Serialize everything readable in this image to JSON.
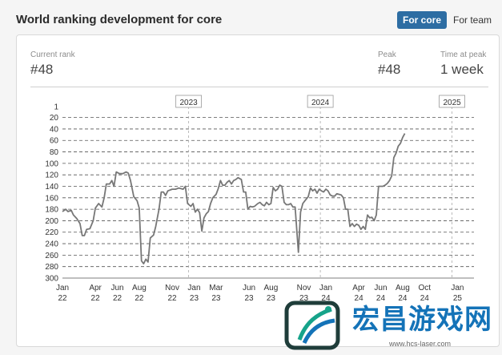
{
  "header": {
    "title": "World ranking development for core",
    "toggle_core": "For core",
    "toggle_team": "For team"
  },
  "stats": {
    "current_rank_label": "Current rank",
    "current_rank_value": "#48",
    "peak_label": "Peak",
    "peak_value": "#48",
    "time_at_peak_label": "Time at peak",
    "time_at_peak_value": "1 week"
  },
  "watermark": {
    "text": "宏昌游戏网",
    "url": "www.hcs-laser.com"
  },
  "chart_data": {
    "type": "line",
    "y_inverted": true,
    "ylim": [
      1,
      300
    ],
    "y_ticks": [
      1,
      20,
      40,
      60,
      80,
      100,
      120,
      140,
      160,
      180,
      200,
      220,
      240,
      260,
      280,
      300
    ],
    "x_ticks": [
      {
        "month": "Jan",
        "year": "22",
        "t": 0
      },
      {
        "month": "Apr",
        "year": "22",
        "t": 3
      },
      {
        "month": "Jun",
        "year": "22",
        "t": 5
      },
      {
        "month": "Aug",
        "year": "22",
        "t": 7
      },
      {
        "month": "Nov",
        "year": "22",
        "t": 10
      },
      {
        "month": "Jan",
        "year": "23",
        "t": 12
      },
      {
        "month": "Mar",
        "year": "23",
        "t": 14
      },
      {
        "month": "Jun",
        "year": "23",
        "t": 17
      },
      {
        "month": "Aug",
        "year": "23",
        "t": 19
      },
      {
        "month": "Nov",
        "year": "23",
        "t": 22
      },
      {
        "month": "Jan",
        "year": "24",
        "t": 24
      },
      {
        "month": "Apr",
        "year": "24",
        "t": 27
      },
      {
        "month": "Jun",
        "year": "24",
        "t": 29
      },
      {
        "month": "Aug",
        "year": "24",
        "t": 31
      },
      {
        "month": "Oct",
        "year": "24",
        "t": 33
      },
      {
        "month": "Jan",
        "year": "25",
        "t": 36
      }
    ],
    "year_markers": [
      {
        "label": "2023",
        "t": 11.5
      },
      {
        "label": "2024",
        "t": 23.5
      },
      {
        "label": "2025",
        "t": 35.5
      }
    ],
    "x_range": [
      0,
      37.5
    ],
    "series": [
      {
        "color": "#777777",
        "points": [
          [
            0.0,
            184
          ],
          [
            0.3,
            180
          ],
          [
            0.5,
            184
          ],
          [
            0.8,
            182
          ],
          [
            1.0,
            190
          ],
          [
            1.3,
            196
          ],
          [
            1.6,
            205
          ],
          [
            1.8,
            226
          ],
          [
            2.0,
            226
          ],
          [
            2.2,
            215
          ],
          [
            2.5,
            214
          ],
          [
            2.8,
            200
          ],
          [
            3.0,
            178
          ],
          [
            3.3,
            170
          ],
          [
            3.6,
            176
          ],
          [
            3.8,
            160
          ],
          [
            4.0,
            136
          ],
          [
            4.3,
            136
          ],
          [
            4.5,
            130
          ],
          [
            4.7,
            140
          ],
          [
            4.9,
            115
          ],
          [
            5.2,
            118
          ],
          [
            5.5,
            118
          ],
          [
            5.8,
            115
          ],
          [
            6.0,
            117
          ],
          [
            6.2,
            130
          ],
          [
            6.5,
            158
          ],
          [
            6.8,
            165
          ],
          [
            7.0,
            178
          ],
          [
            7.2,
            270
          ],
          [
            7.4,
            275
          ],
          [
            7.6,
            267
          ],
          [
            7.8,
            272
          ],
          [
            8.0,
            230
          ],
          [
            8.3,
            225
          ],
          [
            8.5,
            210
          ],
          [
            8.8,
            180
          ],
          [
            9.0,
            150
          ],
          [
            9.2,
            150
          ],
          [
            9.4,
            156
          ],
          [
            9.6,
            148
          ],
          [
            10.0,
            145
          ],
          [
            10.3,
            145
          ],
          [
            10.6,
            143
          ],
          [
            11.0,
            145
          ],
          [
            11.2,
            140
          ],
          [
            11.4,
            170
          ],
          [
            11.7,
            175
          ],
          [
            11.9,
            170
          ],
          [
            12.1,
            185
          ],
          [
            12.3,
            180
          ],
          [
            12.5,
            186
          ],
          [
            12.7,
            218
          ],
          [
            12.9,
            195
          ],
          [
            13.1,
            188
          ],
          [
            13.3,
            184
          ],
          [
            13.5,
            170
          ],
          [
            13.7,
            160
          ],
          [
            14.0,
            154
          ],
          [
            14.2,
            144
          ],
          [
            14.4,
            130
          ],
          [
            14.6,
            138
          ],
          [
            14.8,
            138
          ],
          [
            15.0,
            133
          ],
          [
            15.2,
            130
          ],
          [
            15.4,
            136
          ],
          [
            15.6,
            130
          ],
          [
            15.8,
            128
          ],
          [
            16.0,
            125
          ],
          [
            16.3,
            128
          ],
          [
            16.5,
            150
          ],
          [
            16.7,
            150
          ],
          [
            16.9,
            180
          ],
          [
            17.1,
            175
          ],
          [
            17.3,
            176
          ],
          [
            17.5,
            175
          ],
          [
            17.8,
            170
          ],
          [
            18.0,
            168
          ],
          [
            18.2,
            172
          ],
          [
            18.4,
            174
          ],
          [
            18.6,
            168
          ],
          [
            18.8,
            172
          ],
          [
            19.0,
            170
          ],
          [
            19.2,
            142
          ],
          [
            19.4,
            148
          ],
          [
            19.6,
            145
          ],
          [
            19.8,
            138
          ],
          [
            20.0,
            140
          ],
          [
            20.2,
            168
          ],
          [
            20.4,
            172
          ],
          [
            20.6,
            172
          ],
          [
            20.8,
            170
          ],
          [
            21.0,
            176
          ],
          [
            21.2,
            176
          ],
          [
            21.5,
            255
          ],
          [
            21.7,
            185
          ],
          [
            21.9,
            170
          ],
          [
            22.1,
            165
          ],
          [
            22.4,
            158
          ],
          [
            22.6,
            143
          ],
          [
            22.8,
            148
          ],
          [
            23.0,
            145
          ],
          [
            23.2,
            152
          ],
          [
            23.4,
            145
          ],
          [
            23.6,
            148
          ],
          [
            23.8,
            150
          ],
          [
            24.0,
            145
          ],
          [
            24.2,
            148
          ],
          [
            24.4,
            155
          ],
          [
            24.6,
            157
          ],
          [
            24.8,
            157
          ],
          [
            25.0,
            153
          ],
          [
            25.4,
            155
          ],
          [
            25.6,
            160
          ],
          [
            25.8,
            180
          ],
          [
            26.0,
            180
          ],
          [
            26.2,
            210
          ],
          [
            26.4,
            205
          ],
          [
            26.6,
            210
          ],
          [
            26.8,
            206
          ],
          [
            27.0,
            208
          ],
          [
            27.2,
            215
          ],
          [
            27.4,
            210
          ],
          [
            27.6,
            215
          ],
          [
            27.8,
            190
          ],
          [
            28.0,
            195
          ],
          [
            28.2,
            194
          ],
          [
            28.4,
            200
          ],
          [
            28.6,
            190
          ],
          [
            28.8,
            140
          ],
          [
            29.0,
            140
          ],
          [
            29.2,
            140
          ],
          [
            29.4,
            138
          ],
          [
            29.6,
            135
          ],
          [
            29.8,
            130
          ],
          [
            30.0,
            122
          ],
          [
            30.2,
            90
          ],
          [
            30.4,
            82
          ],
          [
            30.6,
            70
          ],
          [
            30.8,
            65
          ],
          [
            31.0,
            55
          ],
          [
            31.2,
            48
          ]
        ]
      }
    ]
  }
}
